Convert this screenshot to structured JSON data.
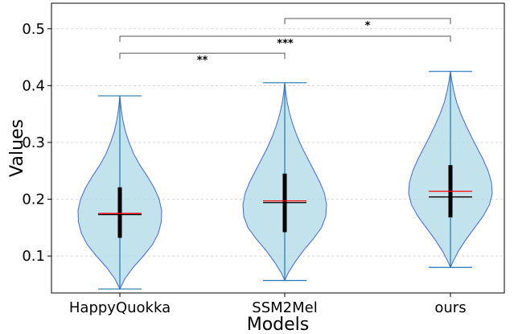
{
  "chart_data": {
    "type": "violin",
    "title": "",
    "xlabel": "Models",
    "ylabel": "Values",
    "ylim": [
      0.035,
      0.545
    ],
    "yticks": [
      0.1,
      0.2,
      0.3,
      0.4,
      0.5
    ],
    "ytick_labels": [
      "0.1",
      "0.2",
      "0.3",
      "0.4",
      "0.5"
    ],
    "grid": "horizontal-dashed",
    "colors": {
      "violin_fill": "#add8e6",
      "violin_edge": "#4169e1",
      "whisker": "#1f77b4",
      "mean_line": "#ff0000",
      "median_line": "#000000",
      "iqr_bar": "#000000",
      "grid": "#cccccc"
    },
    "categories": [
      "HappyQuokka",
      "SSM2Mel",
      "ours"
    ],
    "violins": [
      {
        "name": "HappyQuokka",
        "min": 0.042,
        "max": 0.382,
        "q1": 0.132,
        "q3": 0.221,
        "median": 0.173,
        "mean": 0.175,
        "density": [
          [
            0.042,
            0.0
          ],
          [
            0.06,
            0.12
          ],
          [
            0.08,
            0.32
          ],
          [
            0.1,
            0.56
          ],
          [
            0.12,
            0.78
          ],
          [
            0.14,
            0.92
          ],
          [
            0.16,
            0.99
          ],
          [
            0.18,
            1.0
          ],
          [
            0.2,
            0.94
          ],
          [
            0.22,
            0.82
          ],
          [
            0.24,
            0.66
          ],
          [
            0.26,
            0.48
          ],
          [
            0.28,
            0.33
          ],
          [
            0.3,
            0.22
          ],
          [
            0.32,
            0.13
          ],
          [
            0.34,
            0.07
          ],
          [
            0.36,
            0.03
          ],
          [
            0.382,
            0.0
          ]
        ]
      },
      {
        "name": "SSM2Mel",
        "min": 0.057,
        "max": 0.405,
        "q1": 0.142,
        "q3": 0.245,
        "median": 0.194,
        "mean": 0.197,
        "density": [
          [
            0.057,
            0.0
          ],
          [
            0.07,
            0.08
          ],
          [
            0.09,
            0.25
          ],
          [
            0.11,
            0.45
          ],
          [
            0.13,
            0.68
          ],
          [
            0.15,
            0.88
          ],
          [
            0.17,
            0.98
          ],
          [
            0.19,
            1.0
          ],
          [
            0.21,
            0.95
          ],
          [
            0.23,
            0.84
          ],
          [
            0.25,
            0.7
          ],
          [
            0.27,
            0.56
          ],
          [
            0.29,
            0.42
          ],
          [
            0.31,
            0.3
          ],
          [
            0.33,
            0.2
          ],
          [
            0.35,
            0.12
          ],
          [
            0.37,
            0.06
          ],
          [
            0.39,
            0.02
          ],
          [
            0.405,
            0.0
          ]
        ]
      },
      {
        "name": "ours",
        "min": 0.08,
        "max": 0.425,
        "q1": 0.168,
        "q3": 0.26,
        "median": 0.204,
        "mean": 0.214,
        "density": [
          [
            0.08,
            0.0
          ],
          [
            0.09,
            0.06
          ],
          [
            0.11,
            0.2
          ],
          [
            0.13,
            0.38
          ],
          [
            0.15,
            0.58
          ],
          [
            0.17,
            0.78
          ],
          [
            0.19,
            0.93
          ],
          [
            0.21,
            1.0
          ],
          [
            0.23,
            0.98
          ],
          [
            0.25,
            0.9
          ],
          [
            0.27,
            0.78
          ],
          [
            0.29,
            0.64
          ],
          [
            0.31,
            0.5
          ],
          [
            0.33,
            0.37
          ],
          [
            0.35,
            0.25
          ],
          [
            0.37,
            0.15
          ],
          [
            0.39,
            0.08
          ],
          [
            0.41,
            0.03
          ],
          [
            0.425,
            0.0
          ]
        ]
      }
    ],
    "significance": [
      {
        "from": "HappyQuokka",
        "to": "SSM2Mel",
        "y": 0.457,
        "label": "**"
      },
      {
        "from": "HappyQuokka",
        "to": "ours",
        "y": 0.487,
        "label": "***"
      },
      {
        "from": "SSM2Mel",
        "to": "ours",
        "y": 0.518,
        "label": "*"
      }
    ]
  }
}
